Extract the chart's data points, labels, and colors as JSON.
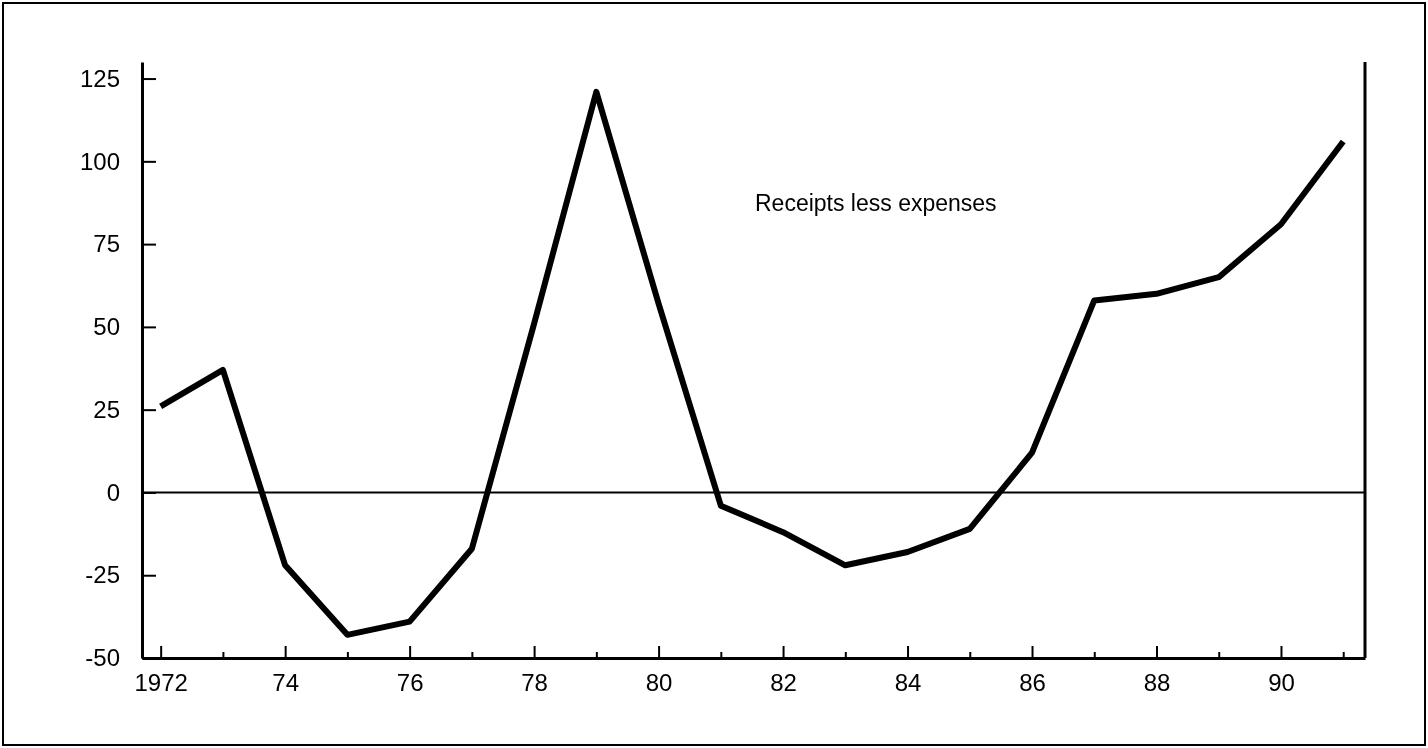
{
  "chart_data": {
    "type": "line",
    "x": [
      1972,
      1973,
      1974,
      1975,
      1976,
      1977,
      1978,
      1979,
      1980,
      1981,
      1982,
      1983,
      1984,
      1985,
      1986,
      1987,
      1988,
      1989,
      1990,
      1991
    ],
    "series": [
      {
        "color": "#000000",
        "values": [
          26,
          37,
          -22,
          -43,
          -39,
          -17,
          51,
          121,
          57,
          -4,
          -12,
          -22,
          -18,
          -11,
          12,
          58,
          60,
          65,
          81,
          106
        ]
      }
    ],
    "xlim": [
      1971.7,
      1991.35
    ],
    "xticks": [
      {
        "value": 1972,
        "label": "1972"
      },
      {
        "value": 1973,
        "label": null
      },
      {
        "value": 1974,
        "label": "74"
      },
      {
        "value": 1975,
        "label": null
      },
      {
        "value": 1976,
        "label": "76"
      },
      {
        "value": 1977,
        "label": null
      },
      {
        "value": 1978,
        "label": "78"
      },
      {
        "value": 1979,
        "label": null
      },
      {
        "value": 1980,
        "label": "80"
      },
      {
        "value": 1981,
        "label": null
      },
      {
        "value": 1982,
        "label": "82"
      },
      {
        "value": 1983,
        "label": null
      },
      {
        "value": 1984,
        "label": "84"
      },
      {
        "value": 1985,
        "label": null
      },
      {
        "value": 1986,
        "label": "86"
      },
      {
        "value": 1987,
        "label": null
      },
      {
        "value": 1988,
        "label": "88"
      },
      {
        "value": 1989,
        "label": null
      },
      {
        "value": 1990,
        "label": "90"
      },
      {
        "value": 1991,
        "label": null
      }
    ],
    "ylim": [
      -50,
      130
    ],
    "yticks": [
      -50,
      -25,
      0,
      25,
      50,
      75,
      100,
      125
    ],
    "ref_lines": [
      {
        "axis": "y",
        "value": 0,
        "color": "#000000"
      }
    ],
    "annotations": [
      "Receipts less expenses"
    ],
    "grid": false,
    "marker": "none",
    "line_style": "solid"
  }
}
